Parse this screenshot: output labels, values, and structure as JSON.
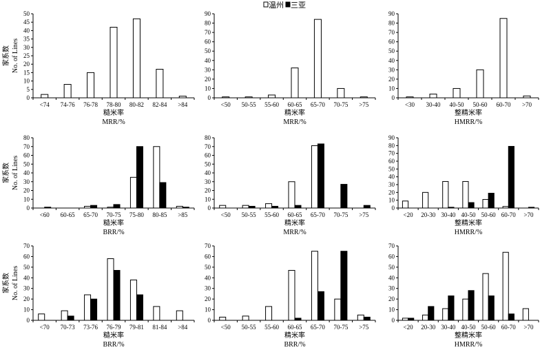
{
  "legend": {
    "open_label": "温州",
    "filled_label": "三亚",
    "open_color": "#ffffff",
    "filled_color": "#000000"
  },
  "ylabel_cn": "家系数",
  "ylabel_en": "No. of Lines",
  "chart_data": [
    {
      "type": "bar",
      "ylim": [
        0,
        50
      ],
      "yticks": [
        0,
        5,
        10,
        15,
        20,
        25,
        30,
        35,
        40,
        45,
        50
      ],
      "categories": [
        "<74",
        "74-76",
        "76-78",
        "78-80",
        "80-82",
        "82-84",
        ">84"
      ],
      "series": [
        {
          "name": "温州",
          "values": [
            2,
            8,
            15,
            42,
            47,
            17,
            1
          ]
        }
      ],
      "xlabel_cn": "糙米率",
      "xlabel_en": "MRR/%"
    },
    {
      "type": "bar",
      "ylim": [
        0,
        90
      ],
      "yticks": [
        0,
        10,
        20,
        30,
        40,
        50,
        60,
        70,
        80,
        90
      ],
      "categories": [
        "<50",
        "50-55",
        "55-60",
        "60-65",
        "65-70",
        "70-75",
        ">75"
      ],
      "series": [
        {
          "name": "温州",
          "values": [
            1,
            1,
            3,
            32,
            84,
            10,
            1
          ]
        }
      ],
      "xlabel_cn": "精米率",
      "xlabel_en": "MRR/%"
    },
    {
      "type": "bar",
      "ylim": [
        0,
        90
      ],
      "yticks": [
        0,
        10,
        20,
        30,
        40,
        50,
        60,
        70,
        80,
        90
      ],
      "categories": [
        "<30",
        "30-40",
        "40-50",
        "50-60",
        "60-70",
        ">70"
      ],
      "series": [
        {
          "name": "温州",
          "values": [
            1,
            4,
            10,
            30,
            85,
            2
          ]
        }
      ],
      "xlabel_cn": "整精米率",
      "xlabel_en": "HMRR/%"
    },
    {
      "type": "bar",
      "ylim": [
        0,
        80
      ],
      "yticks": [
        0,
        10,
        20,
        30,
        40,
        50,
        60,
        70,
        80
      ],
      "categories": [
        "<60",
        "60-65",
        "65-70",
        "70-75",
        "75-80",
        "80-85",
        ">85"
      ],
      "series": [
        {
          "name": "温州",
          "values": [
            0,
            0,
            2,
            1,
            35,
            70,
            2
          ]
        },
        {
          "name": "三亚",
          "values": [
            1,
            0,
            3,
            4,
            70,
            29,
            1
          ]
        }
      ],
      "xlabel_cn": "糙米率",
      "xlabel_en": "BRR/%"
    },
    {
      "type": "bar",
      "ylim": [
        0,
        80
      ],
      "yticks": [
        0,
        10,
        20,
        30,
        40,
        50,
        60,
        70,
        80
      ],
      "categories": [
        "<50",
        "50-55",
        "55-60",
        "60-65",
        "65-70",
        "70-75",
        ">75"
      ],
      "series": [
        {
          "name": "温州",
          "values": [
            3,
            3,
            5,
            30,
            71,
            0,
            0
          ]
        },
        {
          "name": "三亚",
          "values": [
            0,
            2,
            2,
            3,
            73,
            27,
            3
          ]
        }
      ],
      "xlabel_cn": "精米率",
      "xlabel_en": "MRR/%"
    },
    {
      "type": "bar",
      "ylim": [
        0,
        90
      ],
      "yticks": [
        0,
        10,
        20,
        30,
        40,
        50,
        60,
        70,
        80,
        90
      ],
      "categories": [
        "<20",
        "20-30",
        "30-40",
        "40-50",
        "50-60",
        "60-70",
        ">70"
      ],
      "series": [
        {
          "name": "温州",
          "values": [
            9,
            20,
            34,
            34,
            11,
            2,
            0
          ]
        },
        {
          "name": "三亚",
          "values": [
            0,
            0,
            1,
            7,
            19,
            79,
            1
          ]
        }
      ],
      "xlabel_cn": "整精米率",
      "xlabel_en": "HMRR/%"
    },
    {
      "type": "bar",
      "ylim": [
        0,
        70
      ],
      "yticks": [
        0,
        10,
        20,
        30,
        40,
        50,
        60,
        70
      ],
      "categories": [
        "<70",
        "70-73",
        "73-76",
        "76-79",
        "79-81",
        "81-84",
        ">84"
      ],
      "series": [
        {
          "name": "温州",
          "values": [
            6,
            9,
            24,
            58,
            38,
            13,
            9
          ]
        },
        {
          "name": "三亚",
          "values": [
            0,
            4,
            20,
            47,
            24,
            0,
            0
          ]
        }
      ],
      "xlabel_cn": "糙米率",
      "xlabel_en": "BRR/%"
    },
    {
      "type": "bar",
      "ylim": [
        0,
        70
      ],
      "yticks": [
        0,
        10,
        20,
        30,
        40,
        50,
        60,
        70
      ],
      "categories": [
        "<50",
        "50-55",
        "55-60",
        "60-65",
        "65-70",
        "70-75",
        ">75"
      ],
      "series": [
        {
          "name": "温州",
          "values": [
            3,
            4,
            13,
            47,
            65,
            20,
            5
          ]
        },
        {
          "name": "三亚",
          "values": [
            0,
            0,
            0,
            2,
            27,
            65,
            3
          ]
        }
      ],
      "xlabel_cn": "精米率",
      "xlabel_en": "BRR/%"
    },
    {
      "type": "bar",
      "ylim": [
        0,
        70
      ],
      "yticks": [
        0,
        10,
        20,
        30,
        40,
        50,
        60,
        70
      ],
      "categories": [
        "<20",
        "20-30",
        "30-40",
        "40-50",
        "50-60",
        "60-70",
        ">70"
      ],
      "series": [
        {
          "name": "温州",
          "values": [
            2,
            5,
            11,
            20,
            44,
            64,
            11
          ]
        },
        {
          "name": "三亚",
          "values": [
            2,
            13,
            23,
            28,
            23,
            6,
            0
          ]
        }
      ],
      "xlabel_cn": "整精米率",
      "xlabel_en": "HMRR/%"
    }
  ]
}
